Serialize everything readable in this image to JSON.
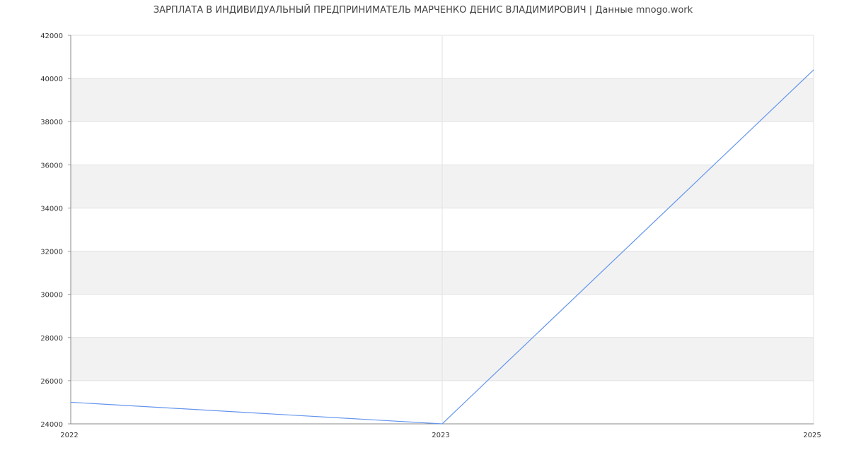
{
  "chart_data": {
    "type": "line",
    "title": "ЗАРПЛАТА В ИНДИВИДУАЛЬНЫЙ ПРЕДПРИНИМАТЕЛЬ МАРЧЕНКО ДЕНИС ВЛАДИМИРОВИЧ | Данные mnogo.work",
    "categories": [
      "2022",
      "2023",
      "2025"
    ],
    "series": [
      {
        "values": [
          25000,
          24000,
          40400
        ],
        "color": "#6495ed"
      }
    ],
    "ylim": [
      24000,
      42000
    ],
    "yticks": [
      "24000",
      "26000",
      "28000",
      "30000",
      "32000",
      "34000",
      "36000",
      "38000",
      "40000",
      "42000"
    ],
    "grid": true,
    "band_color": "#f2f2f2"
  }
}
